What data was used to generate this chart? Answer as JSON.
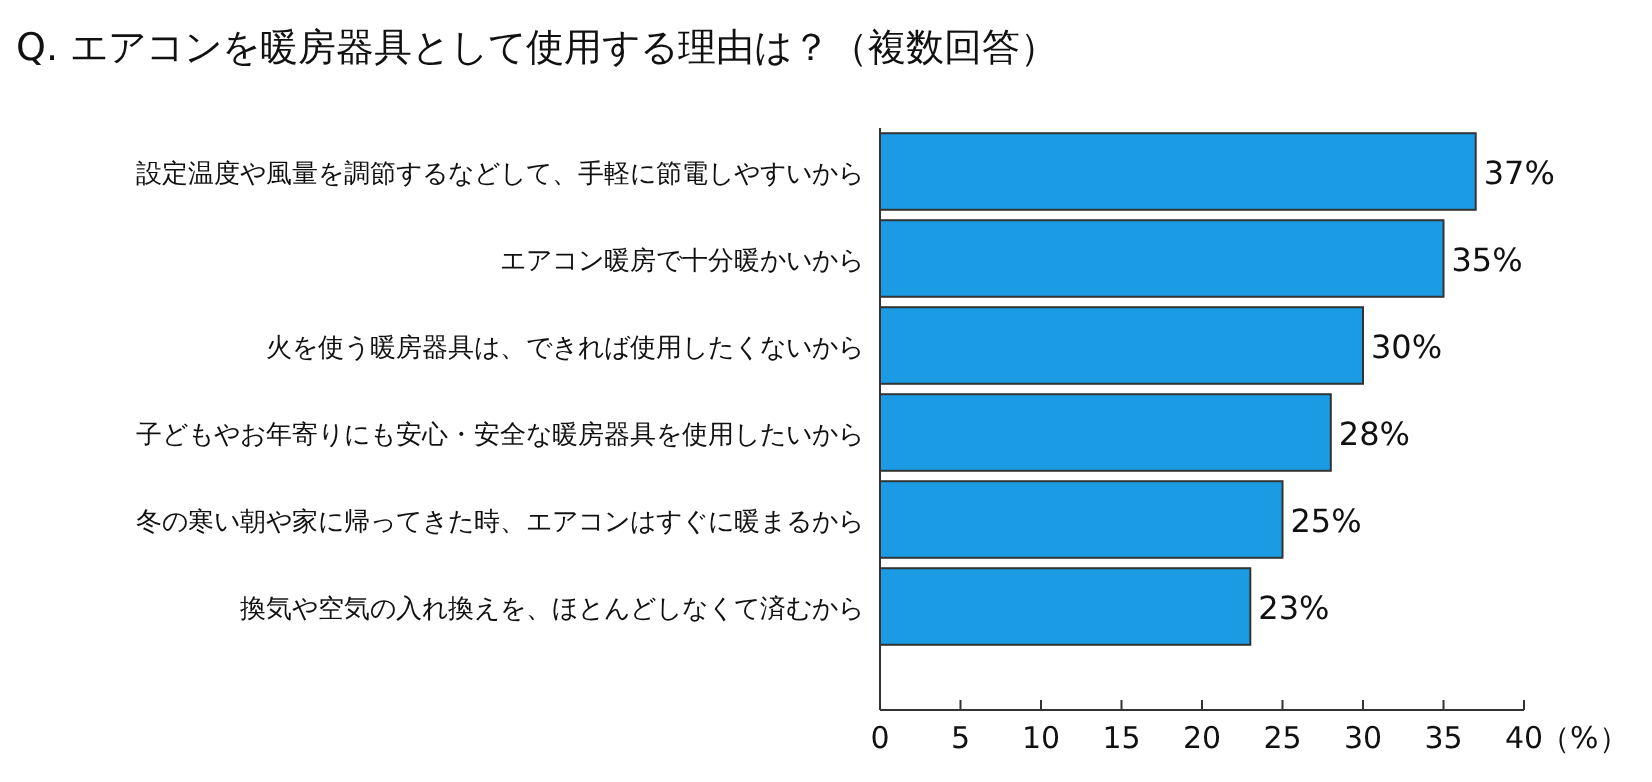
{
  "chart_data": {
    "type": "bar",
    "orientation": "horizontal",
    "title": "Q. エアコンを暖房器具として使用する理由は？（複数回答）",
    "xlabel": "（%）",
    "categories": [
      "設定温度や風量を調節するなどして、手軽に節電しやすいから",
      "エアコン暖房で十分暖かいから",
      "火を使う暖房器具は、できれば使用したくないから",
      "子どもやお年寄りにも安心・安全な暖房器具を使用したいから",
      "冬の寒い朝や家に帰ってきた時、エアコンはすぐに暖まるから",
      "換気や空気の入れ換えを、ほとんどしなくて済むから"
    ],
    "values": [
      37,
      35,
      30,
      28,
      25,
      23
    ],
    "value_labels": [
      "37%",
      "35%",
      "30%",
      "28%",
      "25%",
      "23%"
    ],
    "color": "#1b9be3",
    "xlim": [
      0,
      40
    ],
    "xticks": [
      0,
      5,
      10,
      15,
      20,
      25,
      30,
      35,
      40
    ]
  }
}
